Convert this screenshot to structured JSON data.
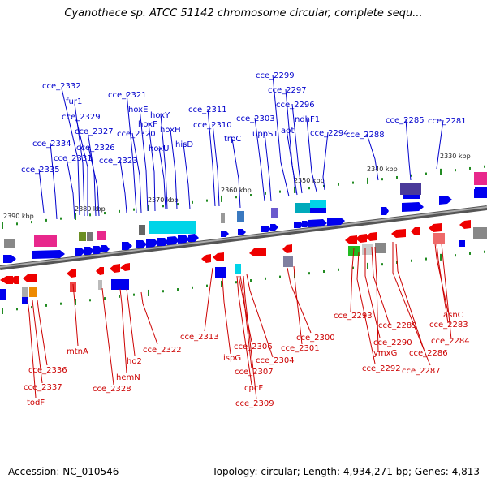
{
  "title": "Cyanothece sp. ATCC 51142 chromosome circular, complete sequ...",
  "footer": {
    "accession": "Accession: NC_010546",
    "topology": "Topology: circular; Length: 4,934,271 bp; Genes: 4,813"
  },
  "colors": {
    "forward": "#0000ee",
    "reverse": "#ee0000",
    "backbone": "#888888",
    "ticks": "#228b22",
    "label_forward": "#0000cc",
    "label_reverse": "#cc0000"
  },
  "scale_labels": [
    "2390 kbp",
    "2380 kbp",
    "2370 kbp",
    "2360 kbp",
    "2350 kbp",
    "2340 kbp",
    "2330 kbp"
  ],
  "forward_labels": [
    "cce_2332",
    "fur1",
    "cce_2329",
    "cce_2327",
    "cce_2334",
    "cce_2326",
    "cce_2331",
    "cce_2335",
    "cce_2321",
    "hoxE",
    "hoxF",
    "cce_2320",
    "hoxY",
    "hoxH",
    "hoxU",
    "hisD",
    "cce_2323",
    "cce_2311",
    "cce_2310",
    "trpC",
    "cce_2303",
    "uppS1",
    "cce_2299",
    "cce_2297",
    "cce_2296",
    "apt",
    "ndhF1",
    "cce_2294",
    "cce_2288",
    "cce_2285",
    "cce_2281"
  ],
  "reverse_labels": [
    "cce_2293",
    "cce_2289",
    "cce_2290",
    "ymxG",
    "cce_2292",
    "cce_2286",
    "cce_2287",
    "asnC",
    "cce_2283",
    "cce_2284",
    "cce_2313",
    "cce_2300",
    "cce_2301",
    "cce_2306",
    "ispG",
    "cce_2304",
    "cce_2307",
    "cpcF",
    "cce_2309",
    "mtnA",
    "cce_2322",
    "ho2",
    "hemN",
    "cce_2328",
    "cce_2336",
    "cce_2337",
    "todF"
  ]
}
